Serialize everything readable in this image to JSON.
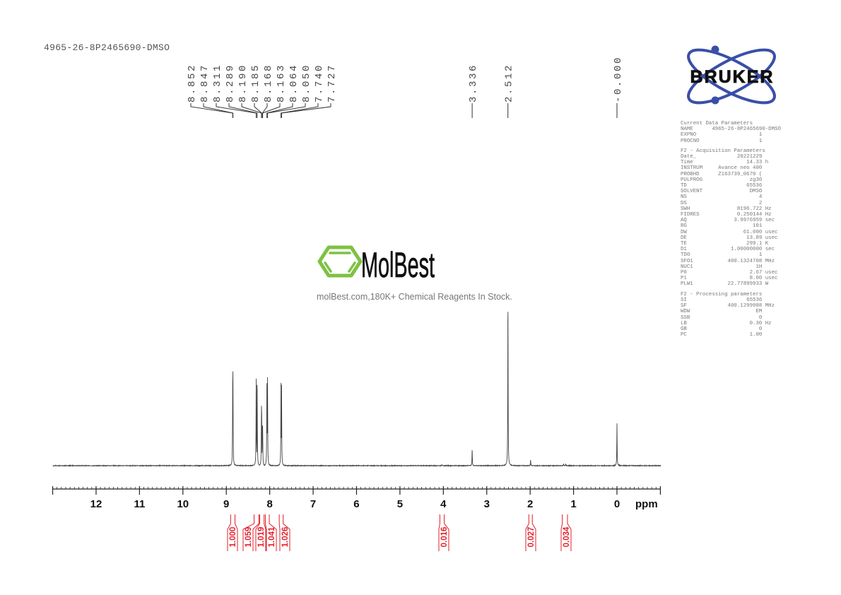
{
  "title": "4965-26-8P2465690-DMSO",
  "watermark": {
    "logo_text": "MolBest",
    "tagline": "molBest.com,180K+ Chemical Reagents In Stock.",
    "color": "#7dc243"
  },
  "bruker_logo": {
    "text": "BRUKER",
    "color": "#3a4fa8"
  },
  "parameters": [
    {
      "header": "Current Data Parameters",
      "rows": [
        {
          "key": "NAME",
          "value": "4965-26-8P2465690-DMSO",
          "unit": ""
        },
        {
          "key": "EXPNO",
          "value": "1",
          "unit": ""
        },
        {
          "key": "PROCNO",
          "value": "1",
          "unit": ""
        }
      ]
    },
    {
      "header": "F2 - Acquisition Parameters",
      "rows": [
        {
          "key": "Date_",
          "value": "20221229",
          "unit": ""
        },
        {
          "key": "Time",
          "value": "14.33",
          "unit": "h"
        },
        {
          "key": "INSTRUM",
          "value": "Avance neo 400",
          "unit": ""
        },
        {
          "key": "PROBHD",
          "value": "Z163739_0670 (",
          "unit": ""
        },
        {
          "key": "PULPROG",
          "value": "zg30",
          "unit": ""
        },
        {
          "key": "TD",
          "value": "65536",
          "unit": ""
        },
        {
          "key": "SOLVENT",
          "value": "DMSO",
          "unit": ""
        },
        {
          "key": "NS",
          "value": "4",
          "unit": ""
        },
        {
          "key": "DS",
          "value": "2",
          "unit": ""
        },
        {
          "key": "SWH",
          "value": "8196.722",
          "unit": "Hz"
        },
        {
          "key": "FIDRES",
          "value": "0.250144",
          "unit": "Hz"
        },
        {
          "key": "AQ",
          "value": "3.9976959",
          "unit": "sec"
        },
        {
          "key": "RG",
          "value": "101",
          "unit": ""
        },
        {
          "key": "DW",
          "value": "61.000",
          "unit": "usec"
        },
        {
          "key": "DE",
          "value": "13.89",
          "unit": "usec"
        },
        {
          "key": "TE",
          "value": "299.1",
          "unit": "K"
        },
        {
          "key": "D1",
          "value": "1.00000000",
          "unit": "sec"
        },
        {
          "key": "TD0",
          "value": "1",
          "unit": ""
        },
        {
          "key": "SFO1",
          "value": "400.1324708",
          "unit": "MHz"
        },
        {
          "key": "NUC1",
          "value": "1H",
          "unit": ""
        },
        {
          "key": "P0",
          "value": "2.67",
          "unit": "usec"
        },
        {
          "key": "P1",
          "value": "8.00",
          "unit": "usec"
        },
        {
          "key": "PLW1",
          "value": "22.77899933",
          "unit": "W"
        }
      ]
    },
    {
      "header": "F2 - Processing parameters",
      "rows": [
        {
          "key": "SI",
          "value": "65536",
          "unit": ""
        },
        {
          "key": "SF",
          "value": "400.1299988",
          "unit": "MHz"
        },
        {
          "key": "WDW",
          "value": "EM",
          "unit": ""
        },
        {
          "key": "SSB",
          "value": "0",
          "unit": ""
        },
        {
          "key": "LB",
          "value": "0.30",
          "unit": "Hz"
        },
        {
          "key": "GB",
          "value": "0",
          "unit": ""
        },
        {
          "key": "PC",
          "value": "1.00",
          "unit": ""
        }
      ]
    }
  ],
  "chart_data": {
    "type": "line",
    "xlabel": "ppm",
    "xlim": [
      13.0,
      -1.0
    ],
    "x_reversed": true,
    "xticks": [
      12,
      11,
      10,
      9,
      8,
      7,
      6,
      5,
      4,
      3,
      2,
      1,
      0
    ],
    "grid": false,
    "peak_color": "#444444",
    "integral_color": "#e0202a",
    "peaks": [
      {
        "ppm": 8.852,
        "label": "8.852",
        "intensity": 57
      },
      {
        "ppm": 8.847,
        "label": "8.847",
        "intensity": 56
      },
      {
        "ppm": 8.311,
        "label": "8.311",
        "intensity": 54
      },
      {
        "ppm": 8.289,
        "label": "8.289",
        "intensity": 53
      },
      {
        "ppm": 8.19,
        "label": "8.190",
        "intensity": 36
      },
      {
        "ppm": 8.185,
        "label": "8.185",
        "intensity": 35
      },
      {
        "ppm": 8.168,
        "label": "8.168",
        "intensity": 25
      },
      {
        "ppm": 8.163,
        "label": "8.163",
        "intensity": 24
      },
      {
        "ppm": 8.064,
        "label": "8.064",
        "intensity": 54
      },
      {
        "ppm": 8.05,
        "label": "8.050",
        "intensity": 53
      },
      {
        "ppm": 7.74,
        "label": "7.740",
        "intensity": 49
      },
      {
        "ppm": 7.727,
        "label": "7.727",
        "intensity": 48
      },
      {
        "ppm": 3.336,
        "label": "3.336",
        "intensity": 10
      },
      {
        "ppm": 2.512,
        "label": "2.512",
        "intensity": 100
      },
      {
        "ppm": 0.0,
        "label": "-0.000",
        "intensity": 25
      }
    ],
    "minor_peaks": [
      {
        "ppm": 4.03,
        "intensity": 0.6
      },
      {
        "ppm": 1.99,
        "intensity": 3.5
      },
      {
        "ppm": 1.23,
        "intensity": 1.2
      },
      {
        "ppm": 1.18,
        "intensity": 1.0
      }
    ],
    "integrals": [
      {
        "value": "1.000",
        "range": [
          8.9,
          8.8
        ]
      },
      {
        "value": "1.059",
        "range": [
          8.36,
          8.25
        ]
      },
      {
        "value": "1.019",
        "range": [
          8.23,
          8.13
        ]
      },
      {
        "value": "1.041",
        "range": [
          8.1,
          8.01
        ]
      },
      {
        "value": "1.026",
        "range": [
          7.78,
          7.69
        ]
      },
      {
        "value": "0.016",
        "range": [
          4.08,
          3.98
        ]
      },
      {
        "value": "0.027",
        "range": [
          2.03,
          1.95
        ]
      },
      {
        "value": "0.034",
        "range": [
          1.26,
          1.14
        ]
      }
    ]
  }
}
